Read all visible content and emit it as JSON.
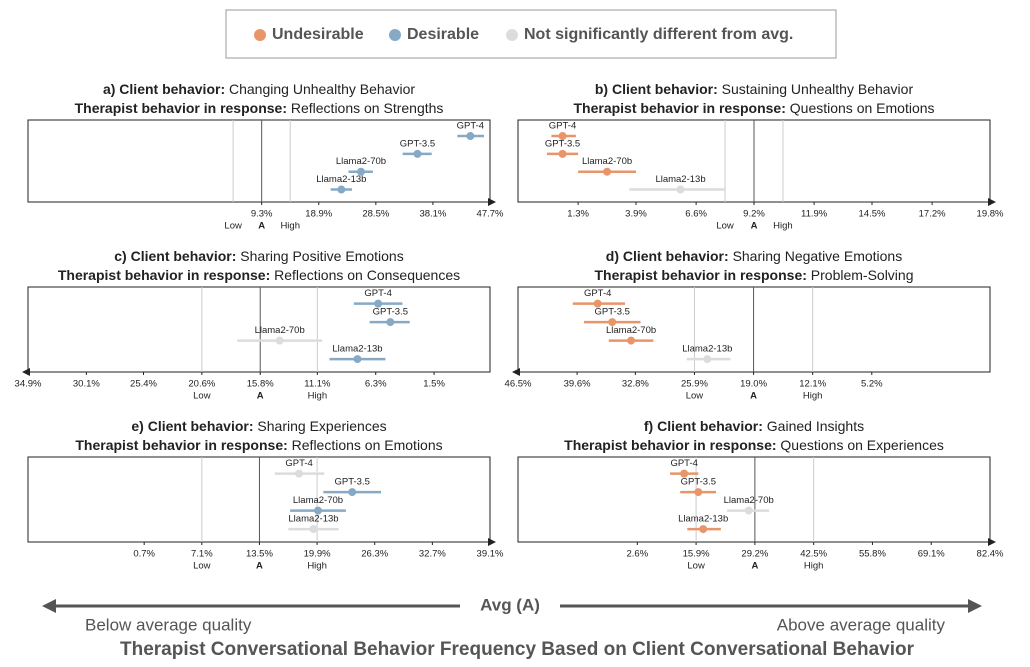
{
  "figure": {
    "legend": [
      {
        "label": "Undesirable",
        "color": "#e8956a"
      },
      {
        "label": "Desirable",
        "color": "#86a9c6"
      },
      {
        "label": "Not significantly different from avg.",
        "color": "#dcdcdc"
      }
    ],
    "axis_label": "Avg (A)",
    "left_note": "Below average quality",
    "right_note": "Above average quality",
    "title": "Therapist Conversational Behavior Frequency Based on Client Conversational Behavior"
  },
  "chart_data": [
    {
      "type": "errorbar",
      "client_prefix": "a) Client behavior:",
      "client_behavior": "Changing Unhealthy Behavior",
      "therapist_prefix": "Therapist behavior in response:",
      "therapist_behavior": "Reflections on Strengths",
      "xlim": [
        -30.0,
        47.7
      ],
      "xticks": [
        {
          "value": 9.3,
          "label": "9.3%"
        },
        {
          "value": 18.9,
          "label": "18.9%"
        },
        {
          "value": 28.5,
          "label": "28.5%"
        },
        {
          "value": 38.1,
          "label": "38.1%"
        },
        {
          "value": 47.7,
          "label": "47.7%"
        }
      ],
      "ref_lines": [
        {
          "value": 4.5,
          "label": "Low"
        },
        {
          "value": 9.3,
          "label": "A"
        },
        {
          "value": 14.1,
          "label": "High"
        }
      ],
      "points": [
        {
          "name": "GPT-4",
          "value": 44.4,
          "low": 42.2,
          "high": 46.7,
          "color": "#86a9c6"
        },
        {
          "name": "GPT-3.5",
          "value": 35.5,
          "low": 33.0,
          "high": 37.9,
          "color": "#86a9c6"
        },
        {
          "name": "Llama2-70b",
          "value": 26.0,
          "low": 23.9,
          "high": 28.0,
          "color": "#86a9c6"
        },
        {
          "name": "Llama2-13b",
          "value": 22.7,
          "low": 20.9,
          "high": 24.5,
          "color": "#86a9c6"
        }
      ]
    },
    {
      "type": "errorbar",
      "client_prefix": "b) Client behavior:",
      "client_behavior": "Sustaining Unhealthy Behavior",
      "therapist_prefix": "Therapist behavior in response:",
      "therapist_behavior": "Questions on Emotions",
      "xlim": [
        -1.4,
        19.8
      ],
      "xticks": [
        {
          "value": 1.3,
          "label": "1.3%"
        },
        {
          "value": 3.9,
          "label": "3.9%"
        },
        {
          "value": 6.6,
          "label": "6.6%"
        },
        {
          "value": 9.2,
          "label": "9.2%"
        },
        {
          "value": 11.9,
          "label": "11.9%"
        },
        {
          "value": 14.5,
          "label": "14.5%"
        },
        {
          "value": 17.2,
          "label": "17.2%"
        },
        {
          "value": 19.8,
          "label": "19.8%"
        }
      ],
      "ref_lines": [
        {
          "value": 7.9,
          "label": "Low"
        },
        {
          "value": 9.2,
          "label": "A"
        },
        {
          "value": 10.5,
          "label": "High"
        }
      ],
      "points": [
        {
          "name": "GPT-4",
          "value": 0.6,
          "low": 0.1,
          "high": 1.2,
          "color": "#e8956a"
        },
        {
          "name": "GPT-3.5",
          "value": 0.6,
          "low": -0.1,
          "high": 1.3,
          "color": "#e8956a"
        },
        {
          "name": "Llama2-70b",
          "value": 2.6,
          "low": 1.3,
          "high": 3.9,
          "color": "#e8956a"
        },
        {
          "name": "Llama2-13b",
          "value": 5.9,
          "low": 3.6,
          "high": 7.9,
          "color": "#dcdcdc"
        }
      ]
    },
    {
      "type": "errorbar",
      "client_prefix": "c) Client behavior:",
      "client_behavior": "Sharing Positive Emotions",
      "therapist_prefix": "Therapist behavior in response:",
      "therapist_behavior": "Reflections on Consequences",
      "xlim": [
        34.9,
        -3.1
      ],
      "xticks": [
        {
          "value": 34.9,
          "label": "34.9%"
        },
        {
          "value": 30.1,
          "label": "30.1%"
        },
        {
          "value": 25.4,
          "label": "25.4%"
        },
        {
          "value": 20.6,
          "label": "20.6%"
        },
        {
          "value": 15.8,
          "label": "15.8%"
        },
        {
          "value": 11.1,
          "label": "11.1%"
        },
        {
          "value": 6.3,
          "label": "6.3%"
        },
        {
          "value": 1.5,
          "label": "1.5%"
        }
      ],
      "ref_lines": [
        {
          "value": 20.6,
          "label": "Low"
        },
        {
          "value": 15.8,
          "label": "A"
        },
        {
          "value": 11.1,
          "label": "High"
        }
      ],
      "points": [
        {
          "name": "GPT-4",
          "value": 6.1,
          "low": 4.1,
          "high": 8.1,
          "color": "#86a9c6"
        },
        {
          "name": "GPT-3.5",
          "value": 5.1,
          "low": 3.5,
          "high": 6.8,
          "color": "#86a9c6"
        },
        {
          "name": "Llama2-70b",
          "value": 14.2,
          "low": 10.7,
          "high": 17.7,
          "color": "#dcdcdc"
        },
        {
          "name": "Llama2-13b",
          "value": 7.8,
          "low": 5.5,
          "high": 10.1,
          "color": "#86a9c6"
        }
      ]
    },
    {
      "type": "errorbar",
      "client_prefix": "d) Client behavior:",
      "client_behavior": "Sharing Negative Emotions",
      "therapist_prefix": "Therapist behavior in response:",
      "therapist_behavior": "Problem-Solving",
      "xlim": [
        46.5,
        -8.6
      ],
      "xticks": [
        {
          "value": 46.5,
          "label": "46.5%"
        },
        {
          "value": 39.6,
          "label": "39.6%"
        },
        {
          "value": 32.8,
          "label": "32.8%"
        },
        {
          "value": 25.9,
          "label": "25.9%"
        },
        {
          "value": 19.0,
          "label": "19.0%"
        },
        {
          "value": 12.1,
          "label": "12.1%"
        },
        {
          "value": 5.2,
          "label": "5.2%"
        }
      ],
      "ref_lines": [
        {
          "value": 25.9,
          "label": "Low"
        },
        {
          "value": 19.0,
          "label": "A"
        },
        {
          "value": 12.1,
          "label": "High"
        }
      ],
      "points": [
        {
          "name": "GPT-4",
          "value": 37.2,
          "low": 34.0,
          "high": 40.1,
          "color": "#e8956a"
        },
        {
          "name": "GPT-3.5",
          "value": 35.5,
          "low": 32.2,
          "high": 38.8,
          "color": "#e8956a"
        },
        {
          "name": "Llama2-70b",
          "value": 33.3,
          "low": 30.7,
          "high": 35.9,
          "color": "#e8956a"
        },
        {
          "name": "Llama2-13b",
          "value": 24.4,
          "low": 21.7,
          "high": 26.8,
          "color": "#dcdcdc"
        }
      ]
    },
    {
      "type": "errorbar",
      "client_prefix": "e) Client behavior:",
      "client_behavior": "Sharing Experiences",
      "therapist_prefix": "Therapist behavior in response:",
      "therapist_behavior": "Reflections on Emotions",
      "xlim": [
        -12.2,
        39.1
      ],
      "xticks": [
        {
          "value": 0.7,
          "label": "0.7%"
        },
        {
          "value": 7.1,
          "label": "7.1%"
        },
        {
          "value": 13.5,
          "label": "13.5%"
        },
        {
          "value": 19.9,
          "label": "19.9%"
        },
        {
          "value": 26.3,
          "label": "26.3%"
        },
        {
          "value": 32.7,
          "label": "32.7%"
        },
        {
          "value": 39.1,
          "label": "39.1%"
        }
      ],
      "ref_lines": [
        {
          "value": 7.1,
          "label": "Low"
        },
        {
          "value": 13.5,
          "label": "A"
        },
        {
          "value": 19.9,
          "label": "High"
        }
      ],
      "points": [
        {
          "name": "GPT-4",
          "value": 17.9,
          "low": 15.2,
          "high": 20.7,
          "color": "#dcdcdc"
        },
        {
          "name": "GPT-3.5",
          "value": 23.8,
          "low": 20.6,
          "high": 27.0,
          "color": "#86a9c6"
        },
        {
          "name": "Llama2-70b",
          "value": 20.0,
          "low": 16.9,
          "high": 23.1,
          "color": "#86a9c6"
        },
        {
          "name": "Llama2-13b",
          "value": 19.5,
          "low": 16.7,
          "high": 22.3,
          "color": "#dcdcdc"
        }
      ]
    },
    {
      "type": "errorbar",
      "client_prefix": "f) Client behavior:",
      "client_behavior": "Gained Insights",
      "therapist_prefix": "Therapist behavior in response:",
      "therapist_behavior": "Questions on Experiences",
      "xlim": [
        -24.4,
        82.4
      ],
      "xticks": [
        {
          "value": 2.6,
          "label": "2.6%"
        },
        {
          "value": 15.9,
          "label": "15.9%"
        },
        {
          "value": 29.2,
          "label": "29.2%"
        },
        {
          "value": 42.5,
          "label": "42.5%"
        },
        {
          "value": 55.8,
          "label": "55.8%"
        },
        {
          "value": 69.1,
          "label": "69.1%"
        },
        {
          "value": 82.4,
          "label": "82.4%"
        }
      ],
      "ref_lines": [
        {
          "value": 15.9,
          "label": "Low"
        },
        {
          "value": 29.2,
          "label": "A"
        },
        {
          "value": 42.5,
          "label": "High"
        }
      ],
      "points": [
        {
          "name": "GPT-4",
          "value": 13.2,
          "low": 10.0,
          "high": 16.4,
          "color": "#e8956a"
        },
        {
          "name": "GPT-3.5",
          "value": 16.4,
          "low": 12.3,
          "high": 20.4,
          "color": "#e8956a"
        },
        {
          "name": "Llama2-70b",
          "value": 27.8,
          "low": 22.9,
          "high": 32.4,
          "color": "#dcdcdc"
        },
        {
          "name": "Llama2-13b",
          "value": 17.5,
          "low": 13.9,
          "high": 21.5,
          "color": "#e8956a"
        }
      ]
    }
  ]
}
